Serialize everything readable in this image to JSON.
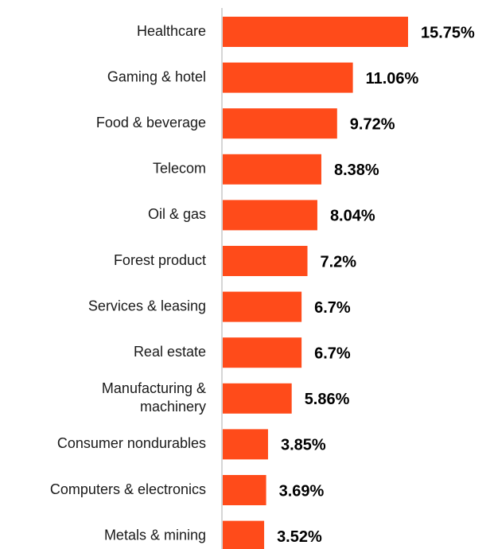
{
  "chart_data": {
    "type": "bar",
    "orientation": "horizontal",
    "title": "",
    "xlabel": "",
    "ylabel": "",
    "grid": false,
    "legend": "none",
    "xlim": [
      0,
      15.75
    ],
    "bar_color": "#ff4b1a",
    "axis_color": "#c8c8c8",
    "categories": [
      "Healthcare",
      "Gaming & hotel",
      "Food & beverage",
      "Telecom",
      "Oil & gas",
      "Forest product",
      "Services & leasing",
      "Real estate",
      "Manufacturing & machinery",
      "Consumer nondurables",
      "Computers & electronics",
      "Metals & mining"
    ],
    "category_lines": [
      [
        "Healthcare"
      ],
      [
        "Gaming & hotel"
      ],
      [
        "Food & beverage"
      ],
      [
        "Telecom"
      ],
      [
        "Oil & gas"
      ],
      [
        "Forest product"
      ],
      [
        "Services & leasing"
      ],
      [
        "Real estate"
      ],
      [
        "Manufacturing &",
        "machinery"
      ],
      [
        "Consumer nondurables"
      ],
      [
        "Computers & electronics"
      ],
      [
        "Metals & mining"
      ]
    ],
    "values": [
      15.75,
      11.06,
      9.72,
      8.38,
      8.04,
      7.2,
      6.7,
      6.7,
      5.86,
      3.85,
      3.69,
      3.52
    ],
    "value_labels": [
      "15.75%",
      "11.06%",
      "9.72%",
      "8.38%",
      "8.04%",
      "7.2%",
      "6.7%",
      "6.7%",
      "5.86%",
      "3.85%",
      "3.69%",
      "3.52%"
    ]
  }
}
